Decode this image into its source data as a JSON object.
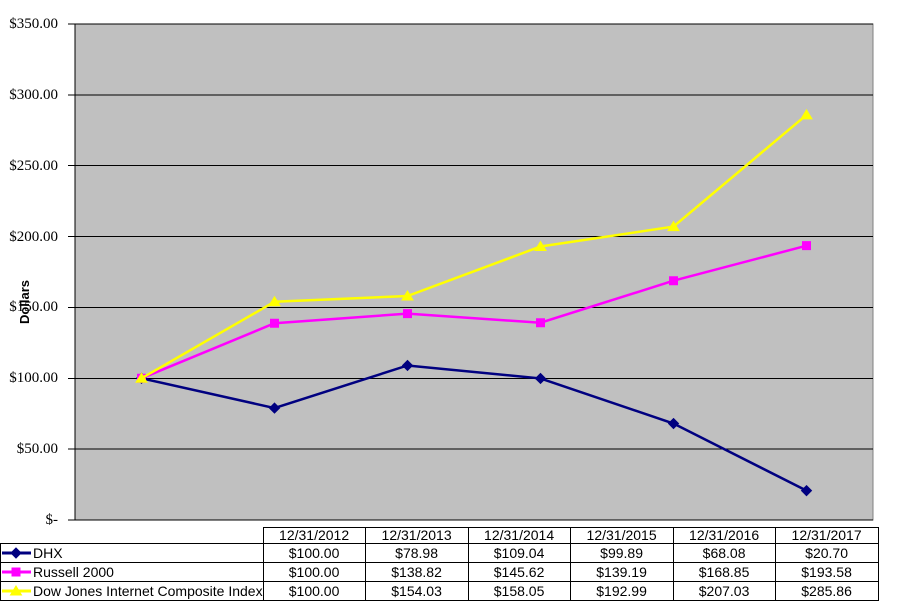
{
  "chart_data": {
    "type": "line",
    "title": "",
    "xlabel": "",
    "ylabel": "Dollars",
    "ylim": [
      0,
      350
    ],
    "grid": true,
    "plot_bg_color": "#C0C0C0",
    "plot_border_color": "#808080",
    "grid_color": "#000000",
    "axis_color": "#000000",
    "ytick_labels": [
      "$350.00",
      "$300.00",
      "$250.00",
      "$200.00",
      "$150.00",
      "$100.00",
      "$50.00",
      "$-"
    ],
    "ytick_values": [
      350,
      300,
      250,
      200,
      150,
      100,
      50,
      0
    ],
    "categories": [
      "12/31/2012",
      "12/31/2013",
      "12/31/2014",
      "12/31/2015",
      "12/31/2016",
      "12/31/2017"
    ],
    "series": [
      {
        "name": "DHX",
        "color": "#000080",
        "marker": "diamond",
        "values": [
          100.0,
          78.98,
          109.04,
          99.89,
          68.08,
          20.7
        ]
      },
      {
        "name": "Russell 2000",
        "color": "#FF00FF",
        "marker": "square",
        "values": [
          100.0,
          138.82,
          145.62,
          139.19,
          168.85,
          193.58
        ]
      },
      {
        "name": "Dow Jones Internet Composite Index",
        "color": "#FFFF00",
        "marker": "triangle",
        "values": [
          100.0,
          154.03,
          158.05,
          192.99,
          207.03,
          285.86
        ]
      }
    ],
    "legend_position": "table-left"
  },
  "table": {
    "rows": [
      {
        "label": "DHX",
        "cells": [
          "$100.00",
          "$78.98",
          "$109.04",
          "$99.89",
          "$68.08",
          "$20.70"
        ]
      },
      {
        "label": "Russell 2000",
        "cells": [
          "$100.00",
          "$138.82",
          "$145.62",
          "$139.19",
          "$168.85",
          "$193.58"
        ]
      },
      {
        "label": "Dow Jones Internet Composite Index",
        "cells": [
          "$100.00",
          "$154.03",
          "$158.05",
          "$192.99",
          "$207.03",
          "$285.86"
        ]
      }
    ]
  }
}
